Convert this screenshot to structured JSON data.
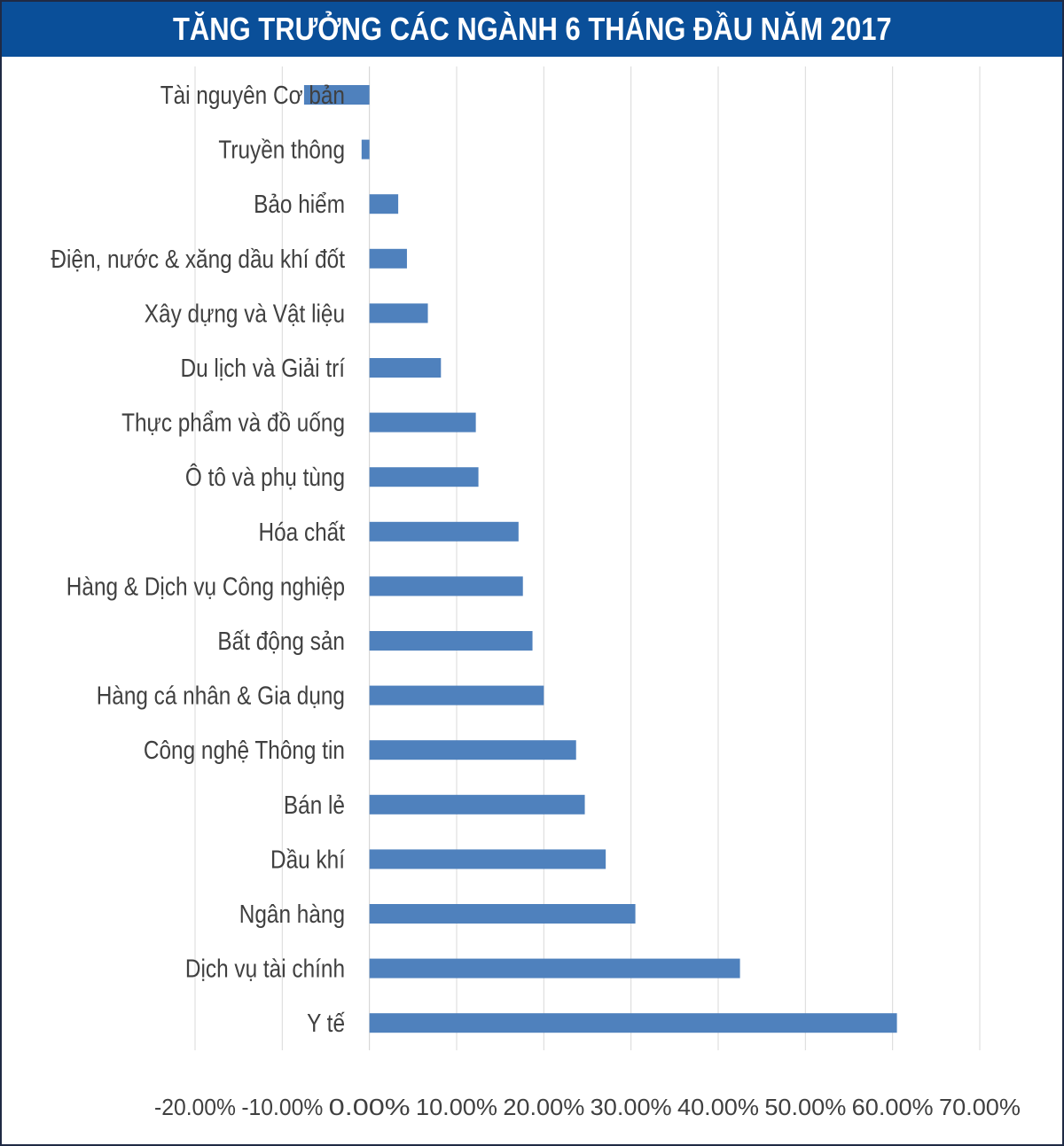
{
  "chart_data": {
    "type": "bar",
    "orientation": "horizontal",
    "title": "TĂNG TRƯỞNG CÁC NGÀNH 6 THÁNG ĐẦU NĂM 2017",
    "xlabel": "",
    "ylabel": "",
    "xlim": [
      -0.2,
      0.7
    ],
    "x_ticks": [
      -0.2,
      -0.1,
      0.0,
      0.1,
      0.2,
      0.3,
      0.4,
      0.5,
      0.6,
      0.7
    ],
    "x_tick_labels": [
      "-20.00%",
      "-10.00%",
      "0.00%",
      "10.00%",
      "20.00%",
      "30.00%",
      "40.00%",
      "50.00%",
      "60.00%",
      "70.00%"
    ],
    "grid": true,
    "bar_color": "#4f81bd",
    "categories": [
      "Tài nguyên Cơ bản",
      "Truyền thông",
      "Bảo hiểm",
      "Điện, nước & xăng dầu khí đốt",
      "Xây dựng và Vật liệu",
      "Du lịch và Giải trí",
      "Thực phẩm và đồ uống",
      "Ô tô và phụ tùng",
      "Hóa chất",
      "Hàng & Dịch vụ Công nghiệp",
      "Bất động sản",
      "Hàng cá nhân & Gia dụng",
      "Công nghệ Thông tin",
      "Bán lẻ",
      "Dầu khí",
      "Ngân hàng",
      "Dịch vụ tài chính",
      "Y tế"
    ],
    "values": [
      -0.075,
      -0.009,
      0.033,
      0.043,
      0.067,
      0.082,
      0.122,
      0.125,
      0.171,
      0.176,
      0.187,
      0.2,
      0.237,
      0.247,
      0.271,
      0.305,
      0.425,
      0.605
    ]
  }
}
